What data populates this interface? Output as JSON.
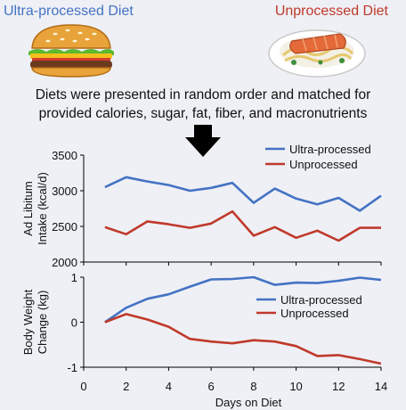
{
  "header": {
    "left_title": "Ultra-processed Diet",
    "right_title": "Unprocessed Diet",
    "left_icon": "burger-icon",
    "right_icon": "salmon-plate-icon"
  },
  "caption": {
    "line1": "Diets were presented in random order and matched for",
    "line2": "provided calories, sugar, fat, fiber, and macronutrients"
  },
  "arrow_icon": "down-arrow-icon",
  "colors": {
    "ultra": "#4472c4",
    "unprocessed": "#c0392b",
    "background": "#eef0f5"
  },
  "chart_data": [
    {
      "type": "line",
      "ylabel_line1": "Ad Libitum",
      "ylabel_line2": "Intake (kcal/d)",
      "xlabel": "",
      "ylim": [
        2000,
        3500
      ],
      "yticks": [
        2000,
        2500,
        3000,
        3500
      ],
      "xlim": [
        0,
        14
      ],
      "grid": false,
      "legend_position": "top-right",
      "x": [
        1,
        2,
        3,
        4,
        5,
        6,
        7,
        8,
        9,
        10,
        11,
        12,
        13,
        14
      ],
      "series": [
        {
          "name": "Ultra-processed",
          "color": "#4472c4",
          "values": [
            3050,
            3190,
            3130,
            3080,
            3000,
            3040,
            3110,
            2830,
            3030,
            2890,
            2810,
            2900,
            2720,
            2930
          ]
        },
        {
          "name": "Unprocessed",
          "color": "#c0392b",
          "values": [
            2490,
            2390,
            2570,
            2530,
            2480,
            2540,
            2710,
            2370,
            2490,
            2340,
            2440,
            2300,
            2480,
            2480
          ]
        }
      ]
    },
    {
      "type": "line",
      "ylabel_line1": "Body Weight",
      "ylabel_line2": "Change (kg)",
      "xlabel": "Days on Diet",
      "ylim": [
        -1,
        1
      ],
      "yticks": [
        -1,
        0,
        1
      ],
      "xlim": [
        0,
        14
      ],
      "xticks": [
        0,
        2,
        4,
        6,
        8,
        10,
        12,
        14
      ],
      "grid": false,
      "legend_position": "top-right",
      "x": [
        1,
        2,
        3,
        4,
        5,
        6,
        7,
        8,
        9,
        10,
        11,
        12,
        13,
        14
      ],
      "series": [
        {
          "name": "Ultra-processed",
          "color": "#4472c4",
          "values": [
            0.0,
            0.32,
            0.52,
            0.62,
            0.79,
            0.95,
            0.96,
            1.0,
            0.83,
            0.88,
            0.87,
            0.92,
            0.99,
            0.94
          ]
        },
        {
          "name": "Unprocessed",
          "color": "#c0392b",
          "values": [
            0.0,
            0.18,
            0.06,
            -0.1,
            -0.37,
            -0.43,
            -0.47,
            -0.4,
            -0.43,
            -0.53,
            -0.75,
            -0.73,
            -0.82,
            -0.92
          ]
        }
      ]
    }
  ]
}
